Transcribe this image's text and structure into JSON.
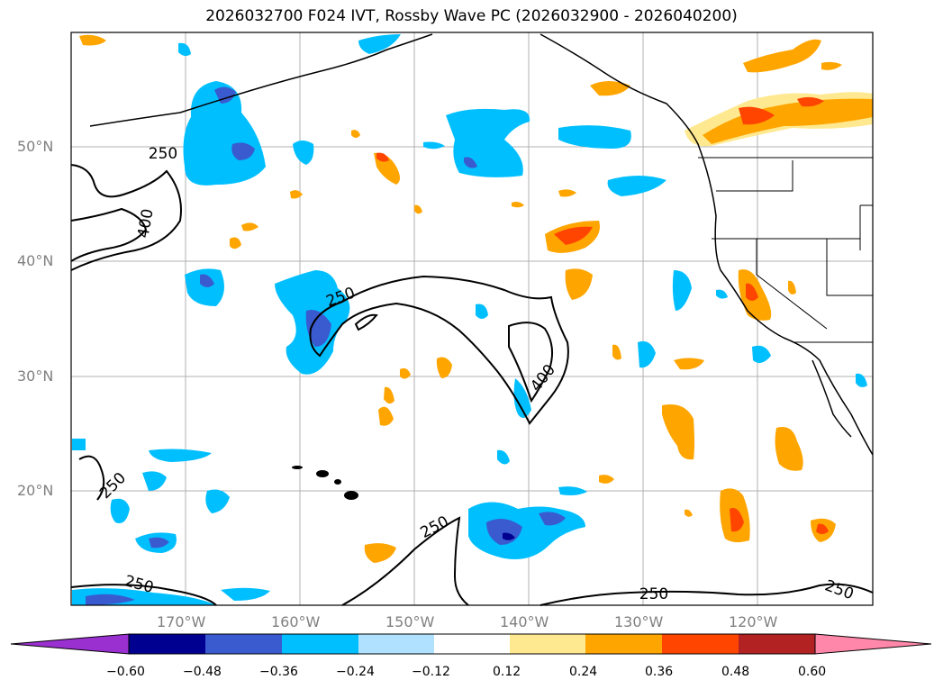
{
  "title": "2026032700 F024 IVT, Rossby Wave PC (2026032900 - 2026040200)",
  "latitude_labels": [
    "50°N",
    "40°N",
    "30°N",
    "20°N"
  ],
  "longitude_labels": [
    "170°W",
    "160°W",
    "150°W",
    "140°W",
    "130°W",
    "120°W"
  ],
  "contour_labels": {
    "c1": "250",
    "c2": "400",
    "c3": "250",
    "c4": "400",
    "c5": "250",
    "c6": "250",
    "c7": "250",
    "c8": "250",
    "c9": "250"
  },
  "colorbar": {
    "ticks": [
      "−0.60",
      "−0.48",
      "−0.36",
      "−0.24",
      "−0.12",
      "0.12",
      "0.24",
      "0.36",
      "0.48",
      "0.60"
    ],
    "colors": [
      "#9b30d0",
      "#000090",
      "#3a5bd0",
      "#00bfff",
      "#b0e2ff",
      "#ffffff",
      "#ffe990",
      "#ffa500",
      "#ff4500",
      "#b22222",
      "#ff88aa"
    ]
  }
}
